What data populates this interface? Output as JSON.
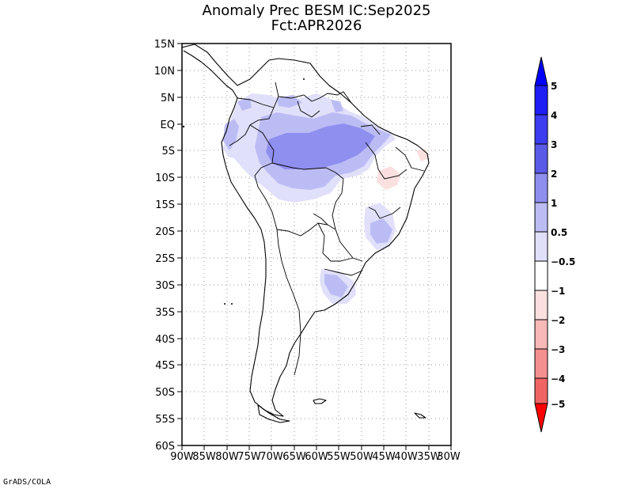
{
  "title": {
    "line1": "Anomaly Prec BESM IC:Sep2025",
    "line2": "Fct:APR2026"
  },
  "credit": "GrADS/COLA",
  "map": {
    "region": "South America",
    "lon_range": [
      -90,
      -30
    ],
    "lat_range": [
      -60,
      15
    ],
    "y_tick_labels": [
      "15N",
      "10N",
      "5N",
      "EQ",
      "5S",
      "10S",
      "15S",
      "20S",
      "25S",
      "30S",
      "35S",
      "40S",
      "45S",
      "50S",
      "55S",
      "60S"
    ],
    "x_tick_labels": [
      "90W",
      "85W",
      "80W",
      "75W",
      "70W",
      "65W",
      "60W",
      "55W",
      "50W",
      "45W",
      "40W",
      "35W",
      "30W"
    ]
  },
  "colorbar": {
    "labels": [
      "5",
      "4",
      "3",
      "2",
      "1",
      "0.5",
      "−0.5",
      "−1",
      "−2",
      "−3",
      "−4",
      "−5"
    ],
    "colors": [
      "#1e1ef5",
      "#3c3cf0",
      "#5a5ae8",
      "#8f8ff0",
      "#bcbcf5",
      "#e0e0fa",
      "#ffffff",
      "#fbe0e0",
      "#f7b8b8",
      "#f49090",
      "#f06464",
      "#ee3434",
      "#ff0000"
    ],
    "top_arrow_color": "#0000ff",
    "bottom_arrow_color": "#ff0000"
  }
}
